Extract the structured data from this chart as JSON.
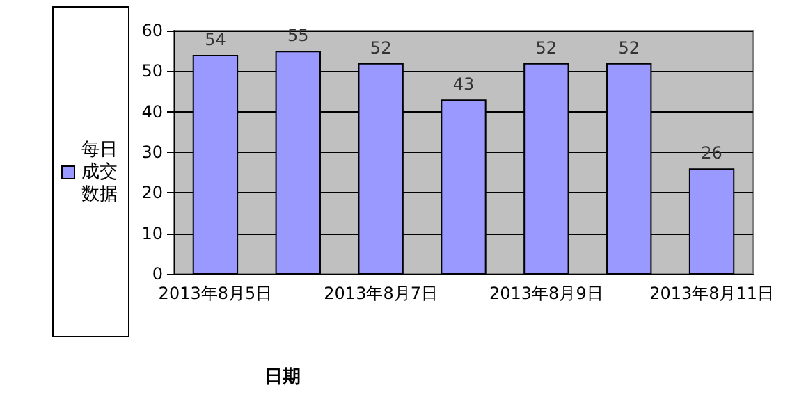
{
  "chart_data": {
    "type": "bar",
    "xlabel": "日期",
    "categories": [
      "2013年8月5日",
      null,
      "2013年8月7日",
      null,
      "2013年8月9日",
      null,
      "2013年8月11日"
    ],
    "series": [
      {
        "name": "每日成交数据",
        "color": "#9999ff",
        "values": [
          54,
          55,
          52,
          43,
          52,
          52,
          26
        ]
      }
    ],
    "ylim": [
      0,
      60
    ],
    "yticks": [
      0,
      10,
      20,
      30,
      40,
      50,
      60
    ],
    "grid": "y",
    "legend": "left",
    "data_labels": true
  }
}
